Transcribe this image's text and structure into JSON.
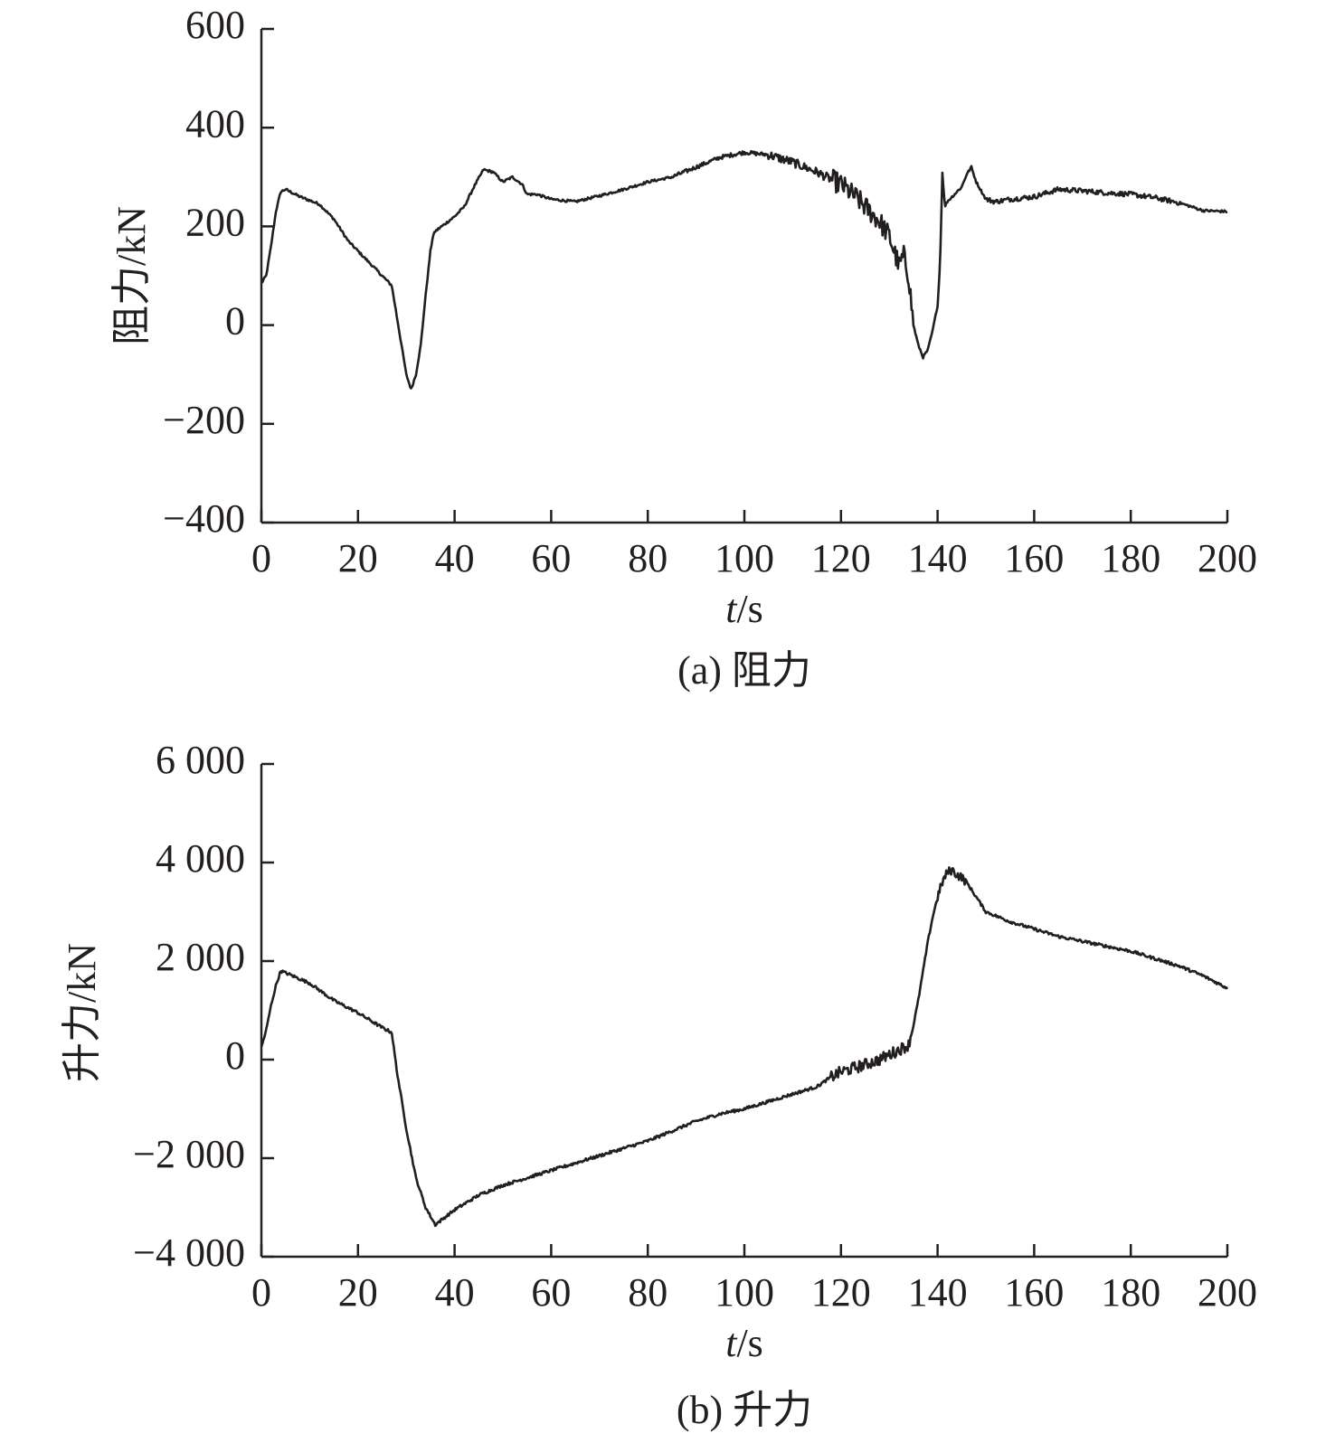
{
  "chart_data": [
    {
      "type": "line",
      "caption": "(a) 阻力",
      "xlabel_italic": "t",
      "xlabel_unit": "/s",
      "ylabel": "阻力/kN",
      "xlim": [
        0,
        200
      ],
      "ylim": [
        -400,
        600
      ],
      "x_ticks": [
        "0",
        "20",
        "40",
        "60",
        "80",
        "100",
        "120",
        "140",
        "160",
        "180",
        "200"
      ],
      "y_ticks": [
        "−400",
        "−200",
        "0",
        "200",
        "400",
        "600"
      ],
      "grid": false,
      "line_color": "#231f20",
      "series": [
        {
          "x": [
            0,
            1,
            2,
            3,
            4,
            5,
            8,
            12,
            15,
            18,
            21,
            24,
            27,
            28,
            29,
            30,
            31,
            32,
            33,
            34,
            35,
            35.5,
            36,
            38,
            40,
            42,
            44,
            46,
            48,
            50,
            52,
            54,
            55,
            57,
            60,
            65,
            70,
            75,
            80,
            85,
            90,
            95,
            100,
            105,
            110,
            115,
            120,
            123,
            126,
            128,
            130,
            131,
            132,
            133,
            134,
            135,
            136,
            137,
            138,
            139,
            140,
            140.5,
            141,
            141.5,
            142,
            143,
            144,
            145,
            146,
            147,
            148,
            150,
            152,
            155,
            160,
            165,
            170,
            175,
            180,
            185,
            190,
            195,
            200
          ],
          "y": [
            85,
            100,
            160,
            230,
            270,
            275,
            260,
            245,
            215,
            170,
            140,
            110,
            80,
            20,
            -40,
            -100,
            -130,
            -100,
            -40,
            60,
            150,
            180,
            190,
            205,
            220,
            240,
            280,
            315,
            310,
            290,
            300,
            285,
            265,
            265,
            255,
            250,
            262,
            275,
            290,
            300,
            320,
            340,
            350,
            345,
            330,
            310,
            285,
            260,
            230,
            210,
            180,
            150,
            120,
            140,
            100,
            0,
            -40,
            -65,
            -50,
            -10,
            40,
            120,
            310,
            240,
            250,
            260,
            270,
            280,
            305,
            320,
            290,
            255,
            250,
            255,
            260,
            275,
            272,
            268,
            265,
            258,
            248,
            232,
            230
          ]
        }
      ]
    },
    {
      "type": "line",
      "caption": "(b) 升力",
      "xlabel_italic": "t",
      "xlabel_unit": "/s",
      "ylabel": "升力/kN",
      "xlim": [
        0,
        200
      ],
      "ylim": [
        -4000,
        6000
      ],
      "x_ticks": [
        "0",
        "20",
        "40",
        "60",
        "80",
        "100",
        "120",
        "140",
        "160",
        "180",
        "200"
      ],
      "y_ticks": [
        "−4 000",
        "−2 000",
        "0",
        "2 000",
        "4 000",
        "6 000"
      ],
      "grid": false,
      "line_color": "#231f20",
      "series": [
        {
          "x": [
            0,
            1,
            2,
            3,
            4,
            6,
            10,
            15,
            20,
            25,
            27,
            28,
            30,
            32,
            34,
            36,
            38,
            40,
            45,
            50,
            55,
            60,
            65,
            70,
            75,
            80,
            85,
            90,
            95,
            100,
            105,
            110,
            115,
            118,
            120,
            125,
            128,
            130,
            131,
            132,
            133,
            134,
            135,
            136,
            137,
            138,
            139,
            140,
            141,
            142,
            143,
            144,
            145,
            146,
            148,
            150,
            155,
            160,
            165,
            170,
            175,
            180,
            185,
            190,
            195,
            200
          ],
          "y": [
            250,
            600,
            1100,
            1500,
            1800,
            1720,
            1550,
            1200,
            950,
            650,
            550,
            -200,
            -1400,
            -2400,
            -3000,
            -3350,
            -3200,
            -3050,
            -2750,
            -2550,
            -2400,
            -2250,
            -2100,
            -1950,
            -1800,
            -1650,
            -1450,
            -1250,
            -1100,
            -1000,
            -850,
            -700,
            -550,
            -350,
            -250,
            -100,
            0,
            100,
            150,
            200,
            250,
            300,
            700,
            1200,
            1800,
            2400,
            2900,
            3300,
            3600,
            3800,
            3850,
            3750,
            3700,
            3600,
            3300,
            3000,
            2800,
            2650,
            2500,
            2400,
            2300,
            2200,
            2050,
            1900,
            1700,
            1450
          ]
        }
      ]
    }
  ]
}
